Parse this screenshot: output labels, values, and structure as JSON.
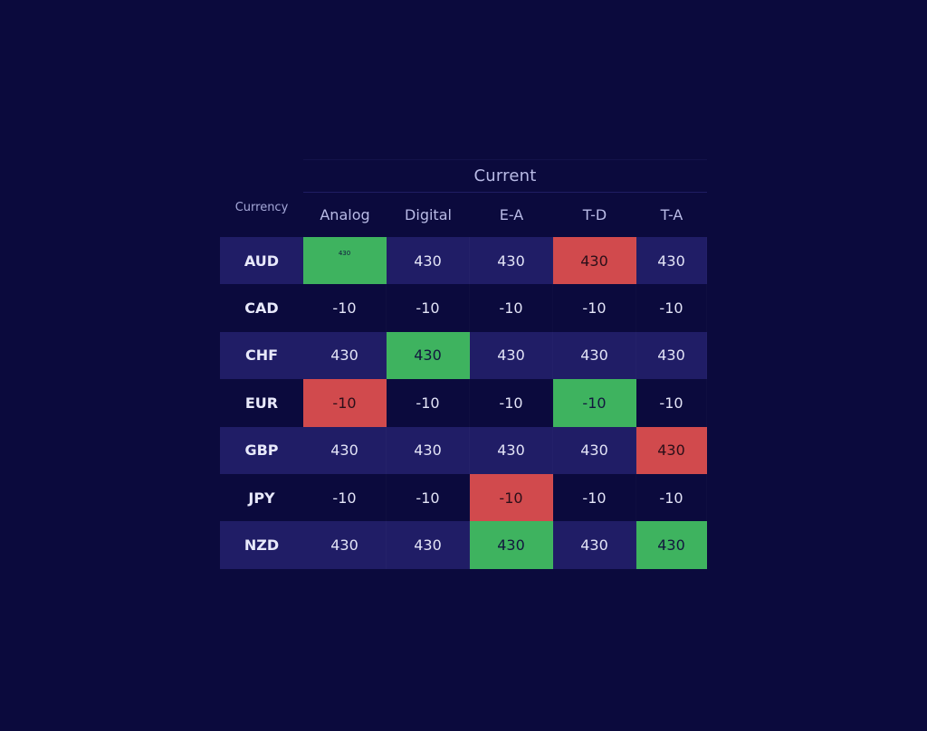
{
  "header": {
    "group_title": "Current",
    "row_header": "Currency",
    "columns": [
      "Analog",
      "Digital",
      "E-A",
      "T-D",
      "T-A"
    ]
  },
  "rows": [
    {
      "currency": "AUD",
      "values": [
        "430",
        "430",
        "430",
        "430",
        "430"
      ],
      "colors": [
        "green-tiny",
        "",
        "",
        "red",
        ""
      ]
    },
    {
      "currency": "CAD",
      "values": [
        "-10",
        "-10",
        "-10",
        "-10",
        "-10"
      ],
      "colors": [
        "",
        "",
        "",
        "",
        ""
      ]
    },
    {
      "currency": "CHF",
      "values": [
        "430",
        "430",
        "430",
        "430",
        "430"
      ],
      "colors": [
        "",
        "green",
        "",
        "",
        ""
      ]
    },
    {
      "currency": "EUR",
      "values": [
        "-10",
        "-10",
        "-10",
        "-10",
        "-10"
      ],
      "colors": [
        "red",
        "",
        "",
        "green",
        ""
      ]
    },
    {
      "currency": "GBP",
      "values": [
        "430",
        "430",
        "430",
        "430",
        "430"
      ],
      "colors": [
        "",
        "",
        "",
        "",
        "red"
      ]
    },
    {
      "currency": "JPY",
      "values": [
        "-10",
        "-10",
        "-10",
        "-10",
        "-10"
      ],
      "colors": [
        "",
        "",
        "red",
        "",
        ""
      ]
    },
    {
      "currency": "NZD",
      "values": [
        "430",
        "430",
        "430",
        "430",
        "430"
      ],
      "colors": [
        "",
        "",
        "green",
        "",
        "green"
      ]
    }
  ],
  "colors": {
    "background": "#0b0a3d",
    "row_stripe": "#201d66",
    "positive": "#3eb35f",
    "negative": "#d14a4d"
  }
}
